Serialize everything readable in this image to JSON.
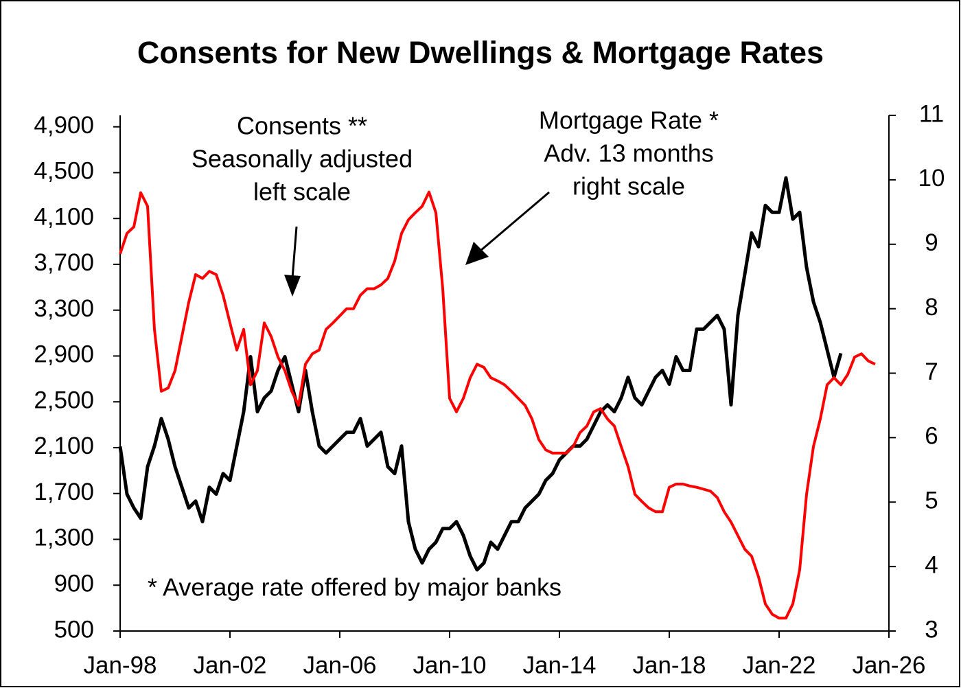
{
  "chart_data": {
    "type": "line",
    "title": "Consents for New Dwellings & Mortgage Rates",
    "annotations": [
      "Consents **",
      "Seasonally adjusted",
      "left scale",
      "Mortgage Rate *",
      "Adv. 13 months",
      "right scale",
      "* Average rate offered by major banks"
    ],
    "x": [
      "Jan-98",
      "Apr-98",
      "Jul-98",
      "Oct-98",
      "Jan-99",
      "Apr-99",
      "Jul-99",
      "Oct-99",
      "Jan-00",
      "Apr-00",
      "Jul-00",
      "Oct-00",
      "Jan-01",
      "Apr-01",
      "Jul-01",
      "Oct-01",
      "Jan-02",
      "Apr-02",
      "Jul-02",
      "Oct-02",
      "Jan-03",
      "Apr-03",
      "Jul-03",
      "Oct-03",
      "Jan-04",
      "Apr-04",
      "Jul-04",
      "Oct-04",
      "Jan-05",
      "Apr-05",
      "Jul-05",
      "Oct-05",
      "Jan-06",
      "Apr-06",
      "Jul-06",
      "Oct-06",
      "Jan-07",
      "Apr-07",
      "Jul-07",
      "Oct-07",
      "Jan-08",
      "Apr-08",
      "Jul-08",
      "Oct-08",
      "Jan-09",
      "Apr-09",
      "Jul-09",
      "Oct-09",
      "Jan-10",
      "Apr-10",
      "Jul-10",
      "Oct-10",
      "Jan-11",
      "Apr-11",
      "Jul-11",
      "Oct-11",
      "Jan-12",
      "Apr-12",
      "Jul-12",
      "Oct-12",
      "Jan-13",
      "Apr-13",
      "Jul-13",
      "Oct-13",
      "Jan-14",
      "Apr-14",
      "Jul-14",
      "Oct-14",
      "Jan-15",
      "Apr-15",
      "Jul-15",
      "Oct-15",
      "Jan-16",
      "Apr-16",
      "Jul-16",
      "Oct-16",
      "Jan-17",
      "Apr-17",
      "Jul-17",
      "Oct-17",
      "Jan-18",
      "Apr-18",
      "Jul-18",
      "Oct-18",
      "Jan-19",
      "Apr-19",
      "Jul-19",
      "Oct-19",
      "Jan-20",
      "Apr-20",
      "Jul-20",
      "Oct-20",
      "Jan-21",
      "Apr-21",
      "Jul-21",
      "Oct-21",
      "Jan-22",
      "Apr-22",
      "Jul-22",
      "Oct-22",
      "Jan-23",
      "Apr-23",
      "Jul-23",
      "Oct-23",
      "Jan-24",
      "Apr-24",
      "Jul-24",
      "Oct-24",
      "Jan-25",
      "Apr-25",
      "Jul-25",
      "Oct-25",
      "Jan-26"
    ],
    "xlim": [
      "Jan-98",
      "Jan-26"
    ],
    "xticks": [
      "Jan-98",
      "Jan-02",
      "Jan-06",
      "Jan-10",
      "Jan-14",
      "Jan-18",
      "Jan-22",
      "Jan-26"
    ],
    "ylim": [
      500,
      5000
    ],
    "yticks": [
      500,
      900,
      {
        "value": 1300,
        "label": "1,300"
      },
      {
        "value": 1700,
        "label": "1,700"
      },
      {
        "value": 2100,
        "label": "2,100"
      },
      {
        "value": 2500,
        "label": "2,500"
      },
      {
        "value": 2900,
        "label": "2,900"
      },
      {
        "value": 3300,
        "label": "3,300"
      },
      {
        "value": 3700,
        "label": "3,700"
      },
      {
        "value": 4100,
        "label": "4,100"
      },
      {
        "value": 4500,
        "label": "4,500"
      },
      {
        "value": 4900,
        "label": "4,900"
      }
    ],
    "y2lim": [
      3,
      11
    ],
    "y2ticks": [
      3,
      4,
      5,
      6,
      7,
      8,
      9,
      10,
      11
    ],
    "series": [
      {
        "name": "Consents",
        "color": "#000000",
        "values": [
          2110,
          1694,
          1574,
          1484,
          1934,
          2114,
          2354,
          2174,
          1934,
          1754,
          1574,
          1634,
          1454,
          1754,
          1694,
          1874,
          1814,
          2114,
          2414,
          2894,
          2414,
          2534,
          2594,
          2774,
          2894,
          2654,
          2414,
          2774,
          2414,
          2114,
          2054,
          2114,
          2174,
          2234,
          2234,
          2354,
          2114,
          2174,
          2234,
          1934,
          1874,
          2114,
          1454,
          1214,
          1094,
          1214,
          1274,
          1394,
          1394,
          1454,
          1334,
          1154,
          1034,
          1094,
          1274,
          1214,
          1334,
          1454,
          1454,
          1574,
          1634,
          1694,
          1814,
          1874,
          1994,
          2054,
          2114,
          2114,
          2174,
          2294,
          2414,
          2474,
          2414,
          2534,
          2714,
          2534,
          2474,
          2594,
          2714,
          2774,
          2654,
          2894,
          2774,
          2774,
          3134,
          3134,
          3194,
          3254,
          3134,
          2474,
          3254,
          3614,
          3974,
          3854,
          4214,
          4154,
          4154,
          4454,
          4094,
          4154,
          3674,
          3374,
          3194,
          2954,
          2714,
          2924,
          null,
          null,
          null,
          null,
          null,
          null,
          null
        ]
      },
      {
        "name": "Mortgage Rate",
        "color": "#ff0000",
        "axis": "y2",
        "values": [
          8.85,
          9.17,
          9.27,
          9.8,
          9.59,
          7.68,
          6.72,
          6.77,
          7.04,
          7.57,
          8.1,
          8.53,
          8.47,
          8.58,
          8.53,
          8.21,
          7.78,
          7.36,
          7.68,
          6.82,
          7.04,
          7.78,
          7.57,
          7.25,
          7.04,
          6.72,
          6.5,
          7.14,
          7.3,
          7.36,
          7.68,
          7.78,
          7.89,
          8.0,
          8.0,
          8.21,
          8.31,
          8.31,
          8.37,
          8.47,
          8.74,
          9.17,
          9.38,
          9.49,
          9.59,
          9.81,
          9.49,
          8.31,
          6.61,
          6.4,
          6.61,
          6.93,
          7.14,
          7.09,
          6.93,
          6.88,
          6.82,
          6.72,
          6.61,
          6.5,
          6.29,
          5.97,
          5.81,
          5.76,
          5.76,
          5.76,
          5.86,
          6.08,
          6.18,
          6.4,
          6.45,
          6.29,
          6.18,
          5.86,
          5.55,
          5.12,
          5.01,
          4.91,
          4.85,
          4.85,
          5.23,
          5.28,
          5.28,
          5.25,
          5.23,
          5.2,
          5.17,
          5.07,
          4.85,
          4.69,
          4.48,
          4.27,
          4.16,
          3.84,
          3.42,
          3.26,
          3.2,
          3.2,
          3.42,
          3.95,
          5.12,
          5.86,
          6.29,
          6.82,
          6.93,
          6.82,
          6.98,
          7.25,
          7.3,
          7.19,
          7.14,
          null,
          null
        ]
      }
    ]
  }
}
